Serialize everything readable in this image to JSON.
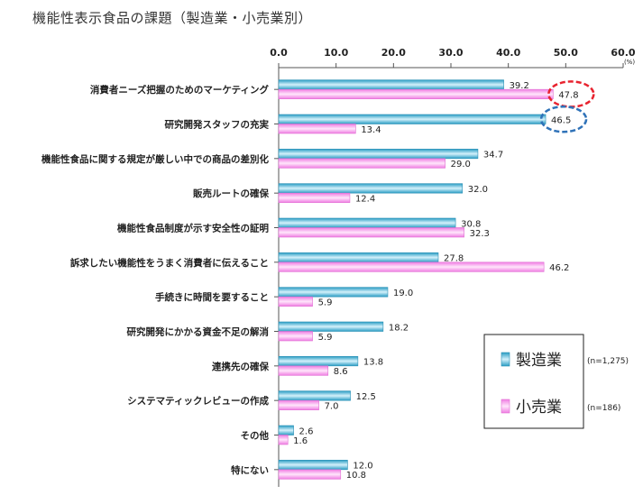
{
  "chart_data": {
    "type": "bar",
    "orientation": "horizontal",
    "title": "機能性表示食品の課題（製造業・小売業別）",
    "unit_label": "(%)",
    "xlim": [
      0,
      60
    ],
    "x_ticks": [
      "0.0",
      "10.0",
      "20.0",
      "30.0",
      "40.0",
      "50.0",
      "60.0"
    ],
    "grid": false,
    "legend_position": "bottom-right",
    "categories": [
      "消費者ニーズ把握のためのマーケティング",
      "研究開発スタッフの充実",
      "機能性食品に関する規定が厳しい中での商品の差別化",
      "販売ルートの確保",
      "機能性食品制度が示す安全性の証明",
      "訴求したい機能性をうまく消費者に伝えること",
      "手続きに時間を要すること",
      "研究開発にかかる資金不足の解消",
      "連携先の確保",
      "システマティックレビューの作成",
      "その他",
      "特にない"
    ],
    "series": [
      {
        "name": "製造業",
        "n_label": "(n=1,275)",
        "values": [
          39.2,
          46.5,
          34.7,
          32.0,
          30.8,
          27.8,
          19.0,
          18.2,
          13.8,
          12.5,
          2.6,
          12.0
        ],
        "labels": [
          "39.2",
          "46.5",
          "34.7",
          "32.0",
          "30.8",
          "27.8",
          "19.0",
          "18.2",
          "13.8",
          "12.5",
          "2.6",
          "12.0"
        ],
        "color": "#4cb5d6"
      },
      {
        "name": "小売業",
        "n_label": "(n=186)",
        "values": [
          47.8,
          13.4,
          29.0,
          12.4,
          32.3,
          46.2,
          5.9,
          5.9,
          8.6,
          7.0,
          1.6,
          10.8
        ],
        "labels": [
          "47.8",
          "13.4",
          "29.0",
          "12.4",
          "32.3",
          "46.2",
          "5.9",
          "5.9",
          "8.6",
          "7.0",
          "1.6",
          "10.8"
        ],
        "color": "#f39ae8"
      }
    ],
    "highlights": [
      {
        "series": 1,
        "category": 0,
        "color": "#e8232f"
      },
      {
        "series": 0,
        "category": 1,
        "color": "#2f72b8"
      }
    ]
  }
}
